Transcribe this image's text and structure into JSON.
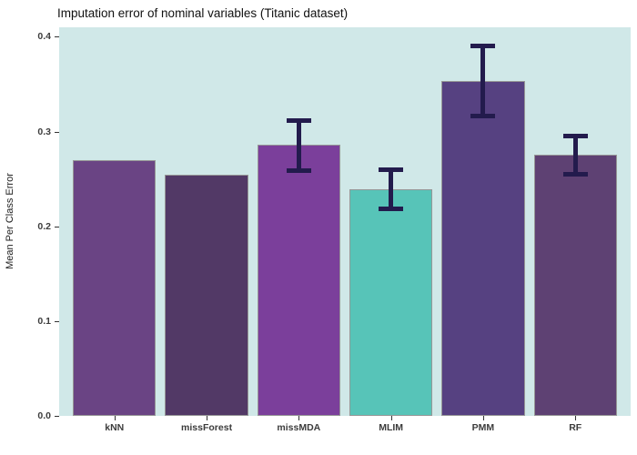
{
  "title": "Imputation error of nominal variables (Titanic dataset)",
  "chart_data": {
    "type": "bar",
    "title": "Imputation error of nominal variables (Titanic dataset)",
    "xlabel": "",
    "ylabel": "Mean Per Class Error",
    "ylim": [
      0,
      0.41
    ],
    "grid": false,
    "legend": "none",
    "panel_background": "#d0e8e8",
    "bar_border_color": "#969696",
    "error_bar_color": "#231b4d",
    "y_tick_labels": [
      "0.0",
      "0.1",
      "0.2",
      "0.3",
      "0.4"
    ],
    "y_tick_values": [
      0,
      0.1,
      0.2,
      0.3,
      0.4
    ],
    "categories": [
      "kNN",
      "missForest",
      "missMDA",
      "MLIM",
      "PMM",
      "RF"
    ],
    "values": [
      0.27,
      0.254,
      0.286,
      0.239,
      0.353,
      0.276
    ],
    "bar_colors": [
      "#6a4484",
      "#523966",
      "#7b3f9b",
      "#57c4b8",
      "#564181",
      "#5e4173"
    ],
    "error_bars": [
      null,
      null,
      {
        "low": 0.259,
        "high": 0.312
      },
      {
        "low": 0.218,
        "high": 0.26
      },
      {
        "low": 0.316,
        "high": 0.39
      },
      {
        "low": 0.255,
        "high": 0.295
      }
    ]
  }
}
